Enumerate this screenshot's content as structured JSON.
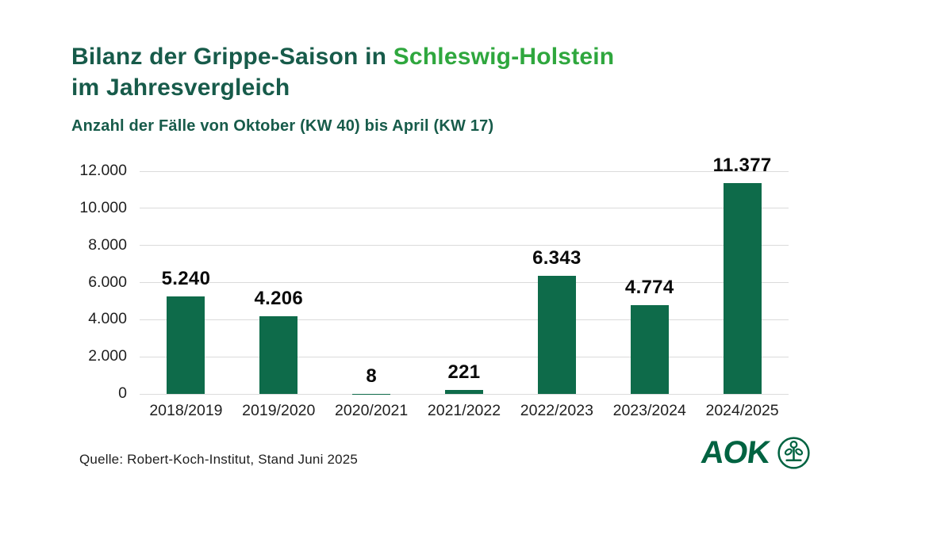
{
  "title": {
    "line1_prefix": "Bilanz der Grippe-Saison in ",
    "line1_highlight": "Schleswig-Holstein",
    "line2": "im Jahresvergleich"
  },
  "subtitle": "Anzahl der Fälle von Oktober (KW 40) bis April (KW 17)",
  "source": "Quelle: Robert-Koch-Institut, Stand Juni 2025",
  "logo": {
    "text": "AOK",
    "icon": "aok-sprout-icon"
  },
  "colors": {
    "background": "#FFFFFF",
    "title_dark": "#175B4A",
    "title_highlight": "#2FA73E",
    "bar": "#0E6B4A",
    "gridline": "#DBDBDB",
    "axis_text": "#1F1F1F",
    "value_text": "#0A0A0A",
    "logo_green": "#006341"
  },
  "chart_data": {
    "type": "bar",
    "title": "Bilanz der Grippe-Saison in Schleswig-Holstein im Jahresvergleich",
    "subtitle": "Anzahl der Fälle von Oktober (KW 40) bis April (KW 17)",
    "categories": [
      "2018/2019",
      "2019/2020",
      "2020/2021",
      "2021/2022",
      "2022/2023",
      "2023/2024",
      "2024/2025"
    ],
    "values": [
      5240,
      4206,
      8,
      221,
      6343,
      4774,
      11377
    ],
    "value_labels": [
      "5.240",
      "4.206",
      "8",
      "221",
      "6.343",
      "4.774",
      "11.377"
    ],
    "xlabel": "",
    "ylabel": "",
    "ylim": [
      0,
      12000
    ],
    "yticks": [
      0,
      2000,
      4000,
      6000,
      8000,
      10000,
      12000
    ],
    "ytick_labels": [
      "0",
      "2.000",
      "4.000",
      "6.000",
      "8.000",
      "10.000",
      "12.000"
    ],
    "grid": true,
    "legend": false
  }
}
